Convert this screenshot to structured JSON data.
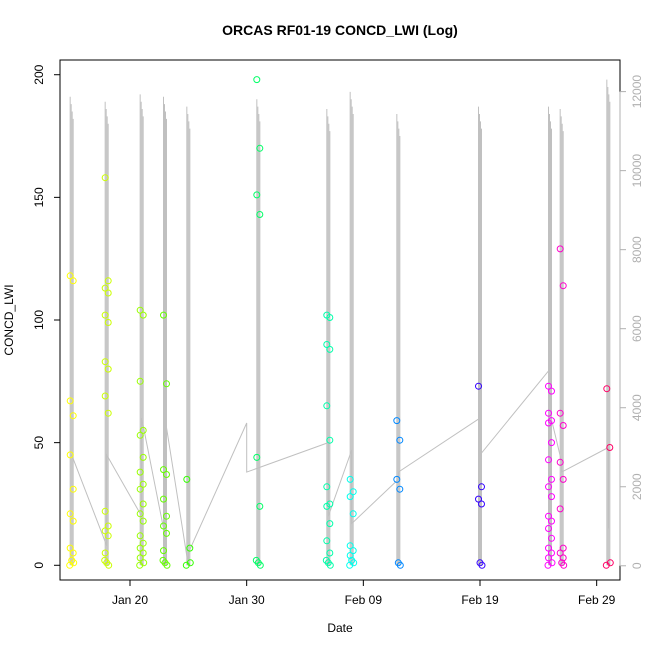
{
  "chart_data": {
    "type": "scatter",
    "title": "ORCAS RF01-19 CONCD_LWI (Log)",
    "xlabel": "Date",
    "ylabel": "CONCD_LWI",
    "xlim": [
      "2016-01-14",
      "2016-03-02"
    ],
    "ylim": [
      -6,
      206
    ],
    "y2lim": [
      -360,
      12800
    ],
    "x_ticks": [
      {
        "date": "2016-01-20",
        "label": "Jan 20"
      },
      {
        "date": "2016-01-30",
        "label": "Jan 30"
      },
      {
        "date": "2016-02-09",
        "label": "Feb 09"
      },
      {
        "date": "2016-02-19",
        "label": "Feb 19"
      },
      {
        "date": "2016-02-29",
        "label": "Feb 29"
      }
    ],
    "y_ticks": [
      0,
      50,
      100,
      150,
      200
    ],
    "y2_ticks": [
      0,
      2000,
      4000,
      6000,
      8000,
      10000,
      12000
    ],
    "y2_color": "#b0b0b0",
    "line_color": "#c0c0c0",
    "line_envelope": [
      [
        "2016-01-15",
        45
      ],
      [
        "2016-01-18",
        8
      ],
      [
        "2016-01-18",
        45
      ],
      [
        "2016-01-21",
        20
      ],
      [
        "2016-01-21",
        60
      ],
      [
        "2016-01-23",
        12
      ],
      [
        "2016-01-23",
        60
      ],
      [
        "2016-01-25",
        0
      ],
      [
        "2016-01-25",
        5
      ],
      [
        "2016-01-30",
        58
      ],
      [
        "2016-01-30",
        38
      ],
      [
        "2016-02-06",
        50
      ],
      [
        "2016-02-06",
        20
      ],
      [
        "2016-02-08",
        47
      ],
      [
        "2016-02-08",
        17
      ],
      [
        "2016-02-12",
        35
      ],
      [
        "2016-02-12",
        38
      ],
      [
        "2016-02-19",
        60
      ],
      [
        "2016-02-19",
        45
      ],
      [
        "2016-02-25",
        80
      ],
      [
        "2016-02-25",
        62
      ],
      [
        "2016-02-26",
        42
      ],
      [
        "2016-02-26",
        38
      ],
      [
        "2016-03-01",
        48
      ],
      [
        "2016-03-01",
        15
      ]
    ],
    "flights": [
      {
        "date": "2016-01-15",
        "color": "#ffff00",
        "spike_max": 191,
        "values": [
          118,
          116,
          67,
          61,
          45,
          31,
          21,
          18,
          7,
          5,
          2,
          1,
          0
        ]
      },
      {
        "date": "2016-01-18",
        "color": "#ccff00",
        "spike_max": 189,
        "values": [
          158,
          116,
          113,
          111,
          102,
          99,
          83,
          80,
          69,
          62,
          22,
          16,
          14,
          12,
          5,
          2,
          1,
          0
        ]
      },
      {
        "date": "2016-01-21",
        "color": "#99ff00",
        "spike_max": 192,
        "values": [
          104,
          102,
          75,
          55,
          53,
          44,
          38,
          33,
          31,
          25,
          21,
          18,
          12,
          9,
          7,
          5,
          3,
          1,
          0
        ]
      },
      {
        "date": "2016-01-23",
        "color": "#66ff00",
        "spike_max": 191,
        "values": [
          102,
          74,
          39,
          37,
          27,
          20,
          16,
          13,
          6,
          2,
          1,
          0
        ]
      },
      {
        "date": "2016-01-25",
        "color": "#33ff00",
        "spike_max": 187,
        "values": [
          35,
          7,
          1,
          0
        ]
      },
      {
        "date": "2016-01-31",
        "color": "#00ff66",
        "spike_max": 190,
        "values": [
          198,
          170,
          151,
          143,
          44,
          24,
          2,
          1,
          0
        ]
      },
      {
        "date": "2016-02-06",
        "color": "#00ffaa",
        "spike_max": 186,
        "values": [
          102,
          101,
          90,
          88,
          65,
          51,
          32,
          25,
          24,
          17,
          10,
          5,
          2,
          1,
          0
        ]
      },
      {
        "date": "2016-02-08",
        "color": "#00ffee",
        "spike_max": 193,
        "values": [
          35,
          30,
          28,
          21,
          8,
          6,
          4,
          2,
          1,
          0
        ]
      },
      {
        "date": "2016-02-12",
        "color": "#0088ff",
        "spike_max": 184,
        "values": [
          59,
          51,
          35,
          31,
          1,
          0
        ]
      },
      {
        "date": "2016-02-19",
        "color": "#3300ff",
        "spike_max": 187,
        "values": [
          73,
          32,
          27,
          25,
          1,
          0
        ]
      },
      {
        "date": "2016-02-25",
        "color": "#ff00ff",
        "spike_max": 187,
        "values": [
          73,
          71,
          62,
          59,
          58,
          50,
          43,
          35,
          32,
          28,
          20,
          18,
          15,
          11,
          7,
          5,
          3,
          1,
          0
        ]
      },
      {
        "date": "2016-02-26",
        "color": "#ff00cc",
        "spike_max": 186,
        "values": [
          129,
          114,
          62,
          57,
          42,
          35,
          23,
          7,
          5,
          3,
          1,
          0
        ]
      },
      {
        "date": "2016-03-01",
        "color": "#ff0066",
        "spike_max": 198,
        "values": [
          72,
          48,
          1,
          0
        ]
      }
    ]
  }
}
